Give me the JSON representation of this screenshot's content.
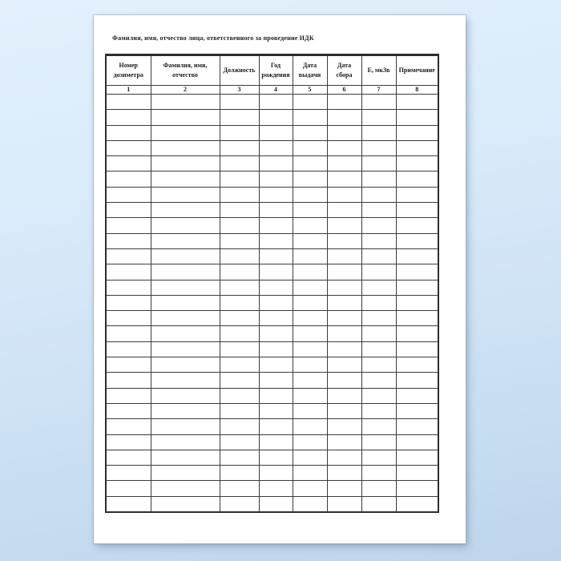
{
  "document": {
    "title": "Фамилия, имя, отчество лица, ответственного за проведение ИДК",
    "table": {
      "columns": [
        {
          "label": "Номер дозиметра",
          "number": "1"
        },
        {
          "label": "Фамилия, имя, отчество",
          "number": "2"
        },
        {
          "label": "Должность",
          "number": "3"
        },
        {
          "label": "Год рождения",
          "number": "4"
        },
        {
          "label": "Дата выдачи",
          "number": "5"
        },
        {
          "label": "Дата сбора",
          "number": "6"
        },
        {
          "label": "Е, мкЗв",
          "number": "7"
        },
        {
          "label": "Примечание",
          "number": "8"
        }
      ],
      "empty_row_count": 27
    }
  },
  "colors": {
    "background_top": "#e4f1fd",
    "background_bottom": "#bdd6ec",
    "page_background": "#ffffff",
    "table_border": "#3c3c3c",
    "text": "#1a1a1a"
  }
}
